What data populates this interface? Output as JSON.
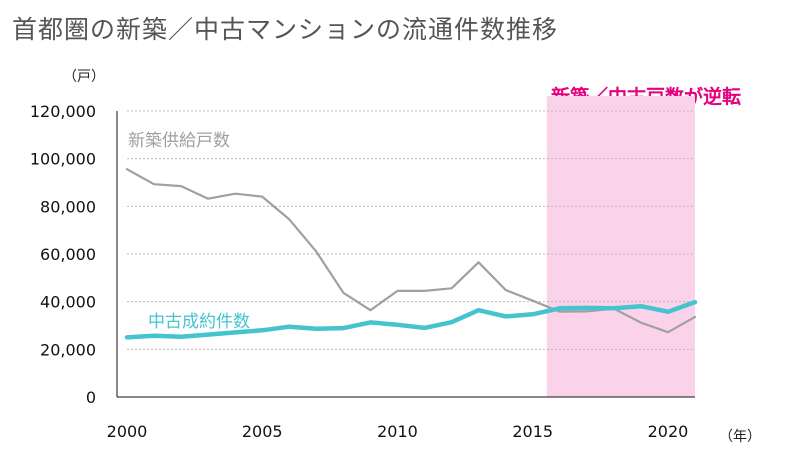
{
  "title": "首都圏の新築／中古マンションの流通件数推移",
  "annotation": "新築／中古戸数が逆転",
  "colors": {
    "new": "#a0a0a0",
    "used": "#45c4cf",
    "highlight": "#fad3ea",
    "annotation": "#e4007f",
    "grid": "#bbbbbb"
  },
  "chart_data": {
    "type": "line",
    "ylabel": "（戸）",
    "xlabel": "（年）",
    "ylim": [
      0,
      120000
    ],
    "xlim": [
      2000,
      2021
    ],
    "y_ticks": [
      "0",
      "20,000",
      "40,000",
      "60,000",
      "80,000",
      "100,000",
      "120,000"
    ],
    "x_ticks": [
      "2000",
      "2005",
      "2010",
      "2015",
      "2020"
    ],
    "grid": "horizontal",
    "highlight_range": [
      2016,
      2021
    ],
    "x": [
      2000,
      2001,
      2002,
      2003,
      2004,
      2005,
      2006,
      2007,
      2008,
      2009,
      2010,
      2011,
      2012,
      2013,
      2014,
      2015,
      2016,
      2017,
      2018,
      2019,
      2020,
      2021
    ],
    "series": [
      {
        "name": "新築供給戸数",
        "values": [
          95600,
          89300,
          88500,
          83200,
          85300,
          84100,
          74500,
          61000,
          43700,
          36400,
          44500,
          44500,
          45600,
          56500,
          44900,
          40400,
          35800,
          35900,
          37100,
          31200,
          27200,
          33600
        ]
      },
      {
        "name": "中古成約件数",
        "values": [
          25000,
          25700,
          25300,
          26200,
          27100,
          28000,
          29500,
          28600,
          28900,
          31300,
          30300,
          29000,
          31400,
          36400,
          33800,
          34700,
          37200,
          37400,
          37200,
          38100,
          35800,
          39800
        ]
      }
    ]
  }
}
